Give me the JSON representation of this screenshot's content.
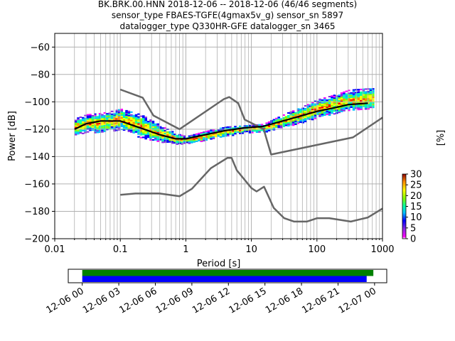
{
  "chart_data": [
    {
      "type": "heatmap",
      "title_lines": [
        "BK.BRK.00.HNN   2018-12-06 -- 2018-12-06  (46/46 segments)",
        "sensor_type FBAES-TGFE(4gmax5v_g) sensor_sn 5897",
        "datalogger_type Q330HR-GFE datalogger_sn 3465"
      ],
      "xlabel": "Period [s]",
      "ylabel": "Power [dB]",
      "xscale": "log",
      "xlim": [
        0.01,
        1000
      ],
      "ylim": [
        -200,
        -50
      ],
      "xticks": [
        0.01,
        0.1,
        1,
        10,
        100,
        1000
      ],
      "xtick_labels": [
        "0.01",
        "0.1",
        "1",
        "10",
        "100",
        "1000"
      ],
      "yticks": [
        -200,
        -180,
        -160,
        -140,
        -120,
        -100,
        -80,
        -60
      ],
      "ytick_labels": [
        "−200",
        "−180",
        "−160",
        "−140",
        "−120",
        "−100",
        "−80",
        "−60"
      ],
      "grid": true,
      "series": [
        {
          "name": "",
          "role": "new-high-noise-model",
          "color": "#666666",
          "points": [
            [
              0.1,
              -91
            ],
            [
              0.22,
              -97
            ],
            [
              0.32,
              -110
            ],
            [
              0.8,
              -120
            ],
            [
              3.8,
              -98
            ],
            [
              4.6,
              -96.5
            ],
            [
              6.3,
              -101
            ],
            [
              7.9,
              -113
            ],
            [
              15.4,
              -120
            ],
            [
              20,
              -138.5
            ],
            [
              354.8,
              -126
            ],
            [
              1000,
              -111.5
            ]
          ]
        },
        {
          "name": "",
          "role": "new-low-noise-model",
          "color": "#666666",
          "points": [
            [
              0.1,
              -168
            ],
            [
              0.17,
              -167
            ],
            [
              0.4,
              -167
            ],
            [
              0.8,
              -169
            ],
            [
              1.24,
              -163.5
            ],
            [
              2.4,
              -148.5
            ],
            [
              4.3,
              -141
            ],
            [
              5.0,
              -141
            ],
            [
              6.0,
              -150
            ],
            [
              10,
              -163
            ],
            [
              12,
              -165.5
            ],
            [
              15.6,
              -162
            ],
            [
              21.9,
              -177.5
            ],
            [
              31.6,
              -185
            ],
            [
              45,
              -187.5
            ],
            [
              70,
              -187.5
            ],
            [
              101,
              -185
            ],
            [
              154,
              -185
            ],
            [
              328,
              -187.5
            ],
            [
              600,
              -184.5
            ],
            [
              1000,
              -178
            ]
          ]
        },
        {
          "name": "",
          "role": "mean-psd",
          "color": "#000000",
          "points": [
            [
              0.02,
              -120
            ],
            [
              0.03,
              -116
            ],
            [
              0.05,
              -114
            ],
            [
              0.1,
              -114
            ],
            [
              0.2,
              -119
            ],
            [
              0.4,
              -124
            ],
            [
              0.7,
              -127
            ],
            [
              1.0,
              -127
            ],
            [
              2.0,
              -124
            ],
            [
              4.0,
              -121
            ],
            [
              8.0,
              -119
            ],
            [
              15,
              -118
            ],
            [
              30,
              -114
            ],
            [
              60,
              -110
            ],
            [
              100,
              -107
            ],
            [
              200,
              -104
            ],
            [
              300,
              -102
            ],
            [
              600,
              -101
            ]
          ]
        }
      ],
      "density_band": {
        "periods": [
          0.02,
          0.03,
          0.05,
          0.1,
          0.2,
          0.4,
          0.7,
          1.0,
          2.0,
          4.0,
          8.0,
          15,
          30,
          60,
          100,
          200,
          300,
          600
        ],
        "low": [
          -124,
          -122,
          -122,
          -120,
          -126,
          -129,
          -131,
          -130,
          -128,
          -125,
          -122,
          -122,
          -118,
          -115,
          -111,
          -108,
          -106,
          -105
        ],
        "high": [
          -112,
          -109,
          -108,
          -105,
          -109,
          -117,
          -123,
          -125,
          -121,
          -118,
          -117,
          -116,
          -109,
          -103,
          -98,
          -94,
          -91,
          -90
        ]
      },
      "colorbar": {
        "label": "[%]",
        "range": [
          0,
          30
        ],
        "ticks": [
          0,
          5,
          10,
          15,
          20,
          25,
          30
        ],
        "tick_labels": [
          "0",
          "5",
          "10",
          "15",
          "20",
          "25",
          "30"
        ]
      }
    },
    {
      "type": "bar",
      "role": "data-coverage-timeline",
      "xticks": [
        "12-06 00",
        "12-06 03",
        "12-06 06",
        "12-06 09",
        "12-06 12",
        "12-06 15",
        "12-06 18",
        "12-06 21",
        "12-07 00"
      ],
      "bars": [
        {
          "start_hours": 0,
          "end_hours": 23.9,
          "color": "#008000"
        },
        {
          "start_hours": 0,
          "end_hours": 23.35,
          "color": "#0000ff"
        }
      ],
      "xlim_hours": [
        -1.15,
        25.0
      ]
    }
  ]
}
